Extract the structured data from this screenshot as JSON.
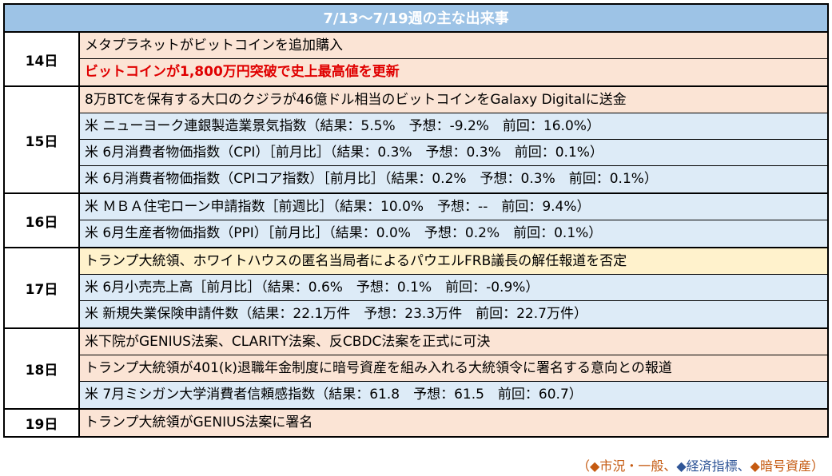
{
  "title": "7/13〜7/19週の主な出来事",
  "groups": [
    {
      "day": "14日",
      "rows": [
        {
          "text": "メタプラネットがビットコインを追加購入",
          "cat": "orange"
        },
        {
          "text": "ビットコインが1,800万円突破で史上最高値を更新",
          "cat": "orange",
          "emphasis": true
        }
      ]
    },
    {
      "day": "15日",
      "rows": [
        {
          "text": "8万BTCを保有する大口のクジラが46億ドル相当のビットコインをGalaxy Digitalに送金",
          "cat": "orange"
        },
        {
          "text": "米 ニューヨーク連銀製造業景気指数（結果：5.5%　予想：-9.2%　前回：16.0%）",
          "cat": "blue"
        },
        {
          "text": "米 6月消費者物価指数（CPI）［前月比］（結果：0.3%　予想：0.3%　前回：0.1%）",
          "cat": "blue"
        },
        {
          "text": "米 6月消費者物価指数（CPIコア指数）［前月比］（結果：0.2%　予想：0.3%　前回：0.1%）",
          "cat": "blue"
        }
      ]
    },
    {
      "day": "16日",
      "rows": [
        {
          "text": "米 ＭＢＡ住宅ローン申請指数［前週比］（結果：10.0%　予想：--　前回：9.4%）",
          "cat": "blue"
        },
        {
          "text": "米 6月生産者物価指数（PPI）［前月比］（結果：0.0%　予想：0.2%　前回：0.1%）",
          "cat": "blue"
        }
      ]
    },
    {
      "day": "17日",
      "rows": [
        {
          "text": "トランプ大統領、ホワイトハウスの匿名当局者によるパウエルFRB議長の解任報道を否定",
          "cat": "yellow"
        },
        {
          "text": "米 6月小売売上高［前月比］（結果：0.6%　予想：0.1%　前回：-0.9%）",
          "cat": "blue"
        },
        {
          "text": "米 新規失業保険申請件数（結果：22.1万件　予想：23.3万件　前回：22.7万件）",
          "cat": "blue"
        }
      ]
    },
    {
      "day": "18日",
      "rows": [
        {
          "text": "米下院がGENIUS法案、CLARITY法案、反CBDC法案を正式に可決",
          "cat": "orange"
        },
        {
          "text": "トランプ大統領が401(k)退職年金制度に暗号資産を組み入れる大統領令に署名する意向との報道",
          "cat": "orange"
        },
        {
          "text": "米 7月ミシガン大学消費者信頼感指数（結果：61.8　予想：61.5　前回：60.7）",
          "cat": "blue"
        }
      ]
    },
    {
      "day": "19日",
      "rows": [
        {
          "text": "トランプ大統領がGENIUS法案に署名",
          "cat": "orange"
        }
      ]
    }
  ],
  "legend": {
    "open": "（",
    "part1": "◆市況・一般、",
    "part2": "◆経済指標、",
    "part3": "◆暗号資産",
    "close": "）"
  },
  "colors": {
    "header": "#9dc3e6",
    "general": "#fff2cc",
    "economic": "#ddebf7",
    "crypto": "#fbe4d5",
    "highlight": "#e00000"
  }
}
